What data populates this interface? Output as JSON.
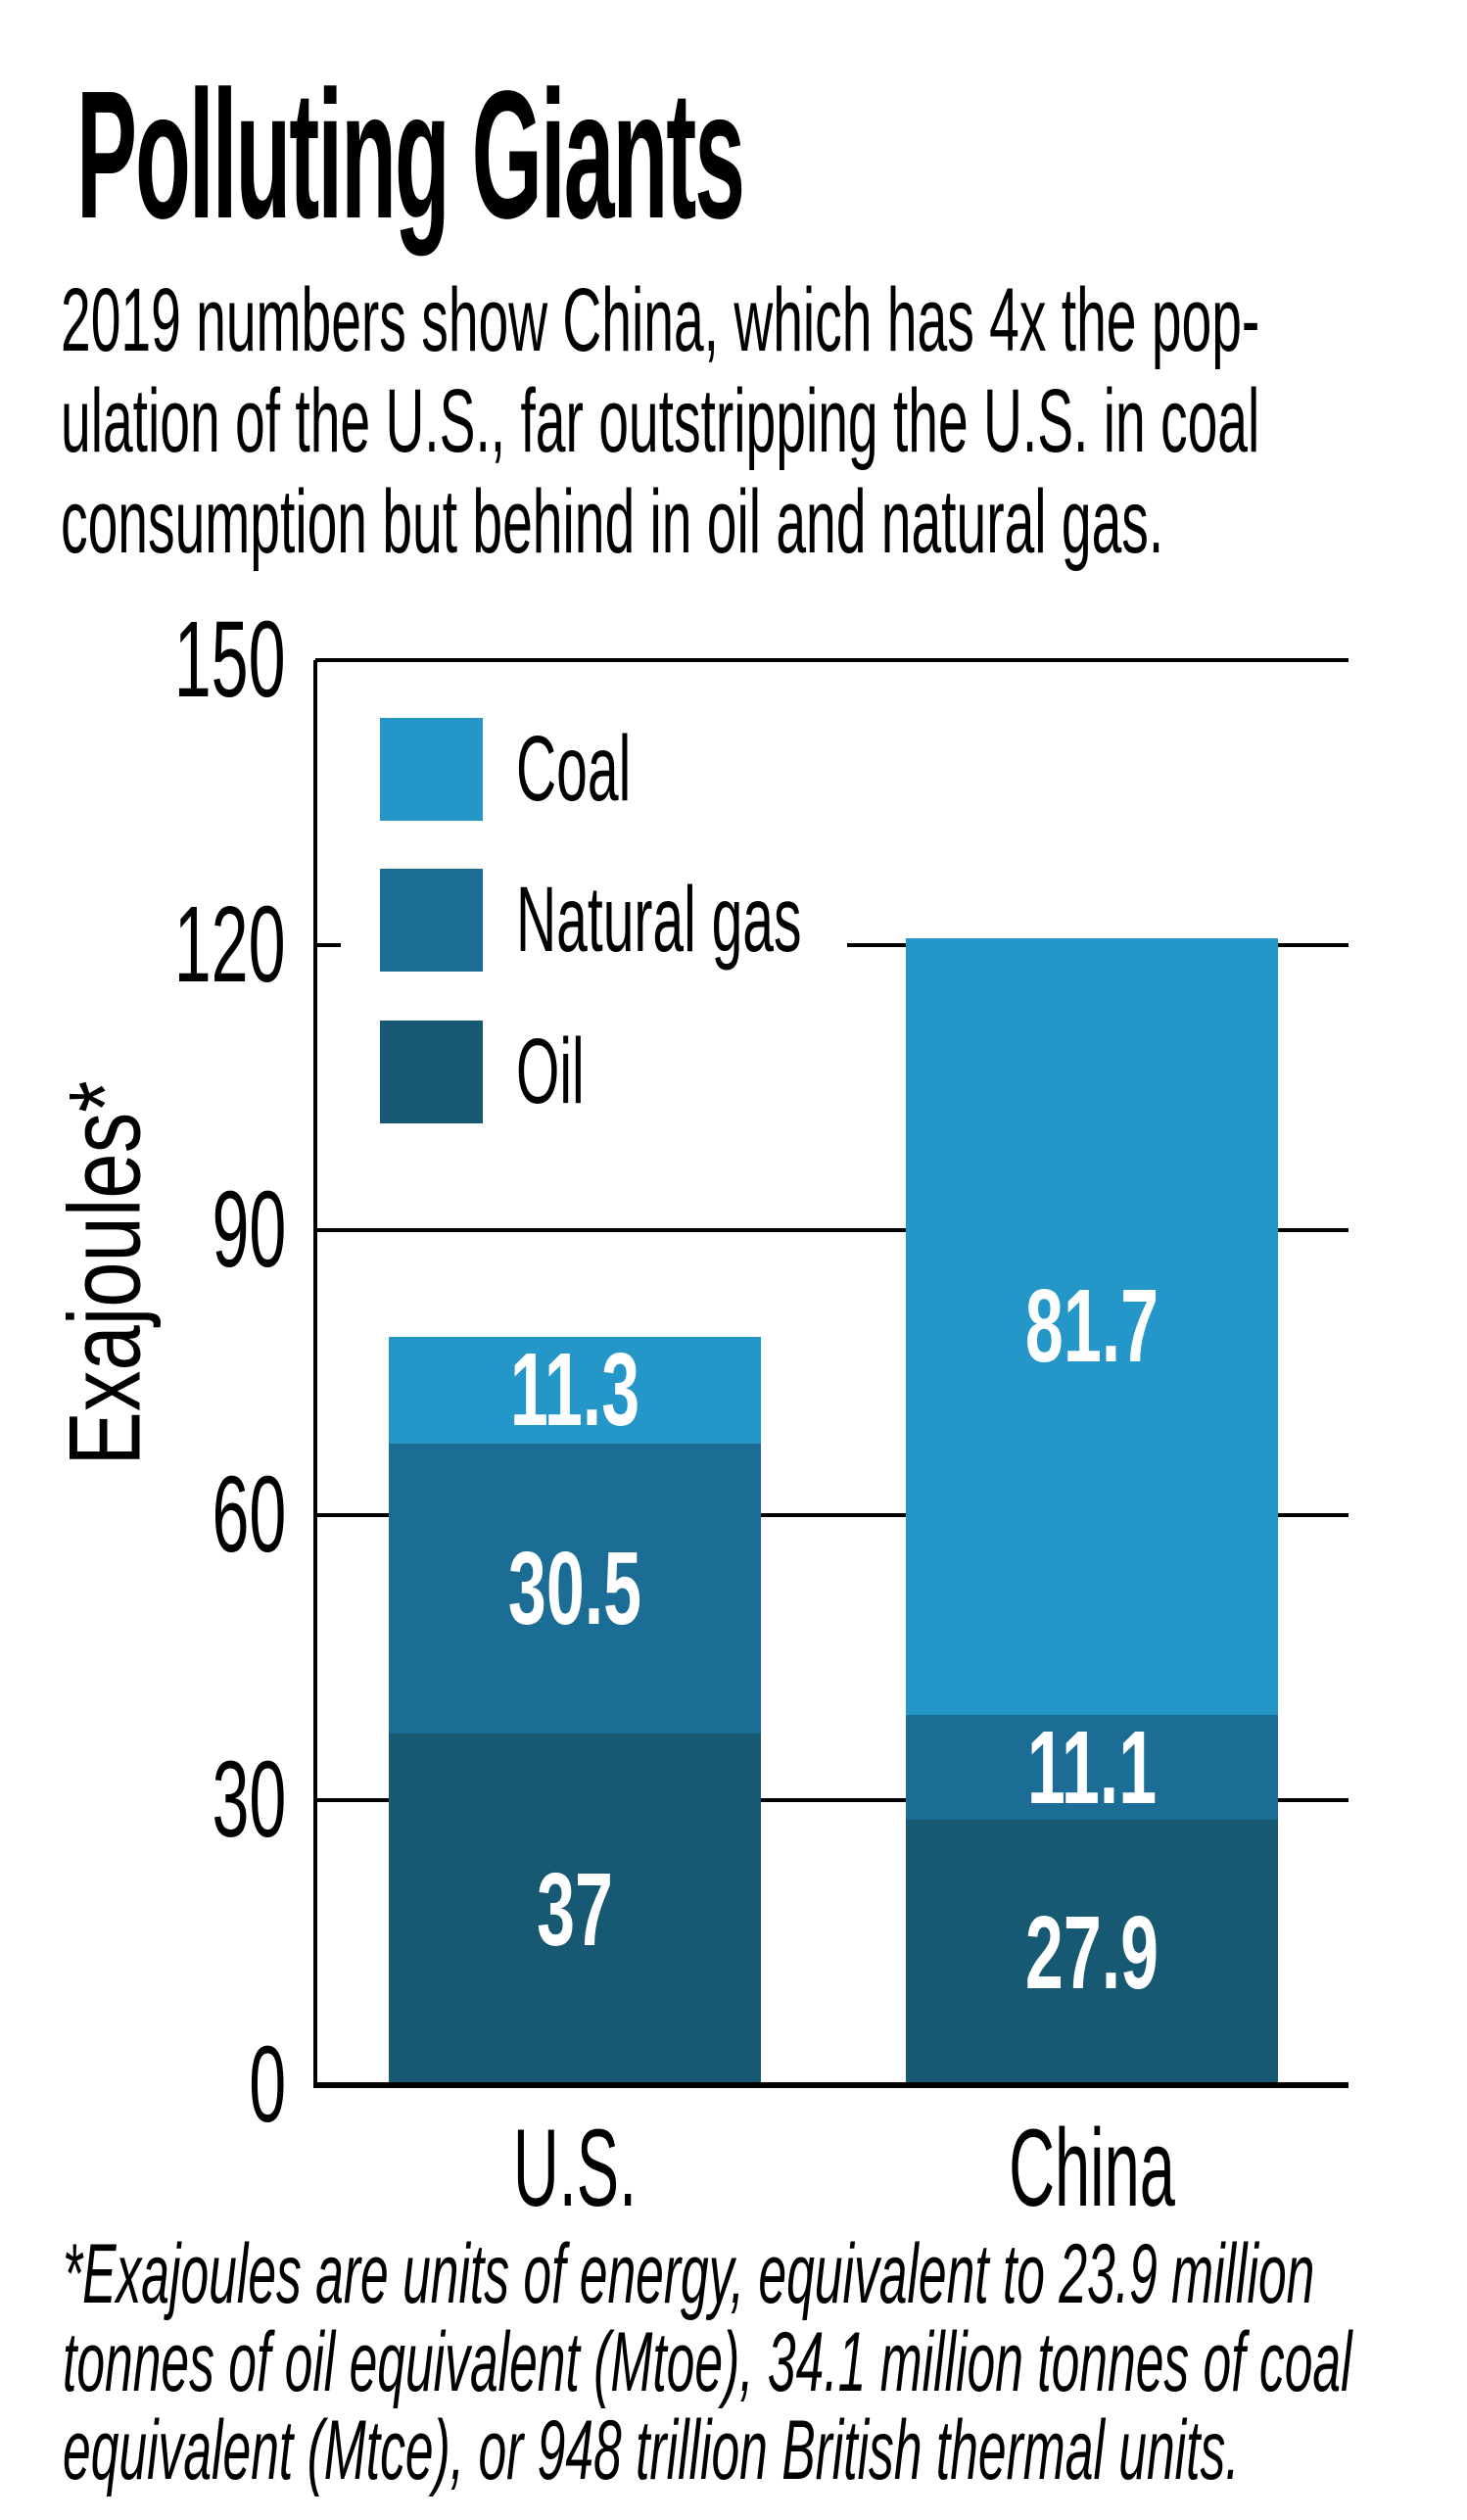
{
  "title": "Polluting Giants",
  "subtitle_lines": [
    "2019 numbers show China, which has 4x the pop-",
    "ulation of the U.S., far outstripping the U.S. in coal",
    "consumption but behind in oil and natural gas."
  ],
  "footnote_lines": [
    "*Exajoules are units of energy, equivalent to 23.9 million",
    "tonnes of oil equivalent (Mtoe), 34.1 million tonnes of coal",
    "equivalent (Mtce), or 948 trillion British thermal units."
  ],
  "colors": {
    "coal": "#2496C8",
    "natural_gas": "#1C6D96",
    "oil": "#175873",
    "axis": "#000000",
    "bar_value_text": "#FFFFFF",
    "background": "#FFFFFF"
  },
  "chart_data": {
    "type": "bar",
    "stacked": true,
    "title": "Polluting Giants",
    "categories": [
      "U.S.",
      "China"
    ],
    "series": [
      {
        "name": "Oil",
        "color": "#175873",
        "values": [
          37,
          27.9
        ],
        "labels": [
          "37",
          "27.9"
        ]
      },
      {
        "name": "Natural gas",
        "color": "#1C6D96",
        "values": [
          30.5,
          11.1
        ],
        "labels": [
          "30.5",
          "11.1"
        ]
      },
      {
        "name": "Coal",
        "color": "#2496C8",
        "values": [
          11.3,
          81.7
        ],
        "labels": [
          "11.3",
          "81.7"
        ]
      }
    ],
    "totals": [
      78.8,
      120.7
    ],
    "ylabel": "Exajoules*",
    "ylim": [
      0,
      150
    ],
    "yticks": [
      0,
      30,
      60,
      90,
      120,
      150
    ],
    "grid": true,
    "legend": {
      "position": "upper left inside",
      "entries": [
        "Coal",
        "Natural gas",
        "Oil"
      ]
    }
  }
}
